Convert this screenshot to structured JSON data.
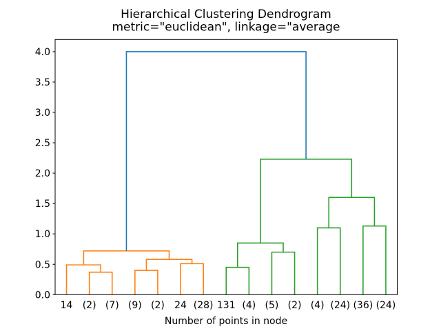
{
  "title": {
    "line1": "Hierarchical Clustering Dendrogram",
    "line2": "metric=\"euclidean\", linkage=\"average"
  },
  "chart_data": {
    "type": "dendrogram",
    "title": "Hierarchical Clustering Dendrogram",
    "subtitle": "metric=\"euclidean\", linkage=\"average",
    "xlabel": "Number of points in node",
    "ylabel": "",
    "grid": false,
    "legend": "none",
    "xlim": [
      0,
      150
    ],
    "ylim": [
      0,
      4.2
    ],
    "yticks": [
      0.0,
      0.5,
      1.0,
      1.5,
      2.0,
      2.5,
      3.0,
      3.5,
      4.0
    ],
    "ytick_labels": [
      "0.0",
      "0.5",
      "1.0",
      "1.5",
      "2.0",
      "2.5",
      "3.0",
      "3.5",
      "4.0"
    ],
    "leaves": [
      "14",
      "(2)",
      "(7)",
      "(9)",
      "(2)",
      "24",
      "(28)",
      "131",
      "(4)",
      "(5)",
      "(2)",
      "(4)",
      "(24)",
      "(36)",
      "(24)"
    ],
    "leaf_x": [
      5,
      15,
      25,
      35,
      45,
      55,
      65,
      75,
      85,
      95,
      105,
      115,
      125,
      135,
      145
    ],
    "merges": [
      {
        "id": "M0",
        "children": [
          "L1",
          "L2"
        ],
        "height": 0.37,
        "color": "orange"
      },
      {
        "id": "M1",
        "children": [
          "L0",
          "M0"
        ],
        "height": 0.49,
        "color": "orange"
      },
      {
        "id": "M2",
        "children": [
          "L3",
          "L4"
        ],
        "height": 0.4,
        "color": "orange"
      },
      {
        "id": "M3",
        "children": [
          "L5",
          "L6"
        ],
        "height": 0.51,
        "color": "orange"
      },
      {
        "id": "M4",
        "children": [
          "M2",
          "M3"
        ],
        "height": 0.58,
        "color": "orange"
      },
      {
        "id": "M5",
        "children": [
          "M1",
          "M4"
        ],
        "height": 0.72,
        "color": "orange"
      },
      {
        "id": "M6",
        "children": [
          "L7",
          "L8"
        ],
        "height": 0.45,
        "color": "green"
      },
      {
        "id": "M7",
        "children": [
          "L9",
          "L10"
        ],
        "height": 0.7,
        "color": "green"
      },
      {
        "id": "M8",
        "children": [
          "M6",
          "M7"
        ],
        "height": 0.85,
        "color": "green"
      },
      {
        "id": "M9",
        "children": [
          "L11",
          "L12"
        ],
        "height": 1.1,
        "color": "green"
      },
      {
        "id": "M10",
        "children": [
          "L13",
          "L14"
        ],
        "height": 1.13,
        "color": "green"
      },
      {
        "id": "M11",
        "children": [
          "M9",
          "M10"
        ],
        "height": 1.6,
        "color": "green"
      },
      {
        "id": "M12",
        "children": [
          "M8",
          "M11"
        ],
        "height": 2.23,
        "color": "green"
      },
      {
        "id": "M13",
        "children": [
          "M5",
          "M12"
        ],
        "height": 4.0,
        "color": "blue"
      }
    ],
    "colors": {
      "orange": "#ff7f0e",
      "green": "#2ca02c",
      "blue": "#1f77b4",
      "spine": "#000000",
      "text": "#000000",
      "background": "#ffffff"
    }
  }
}
